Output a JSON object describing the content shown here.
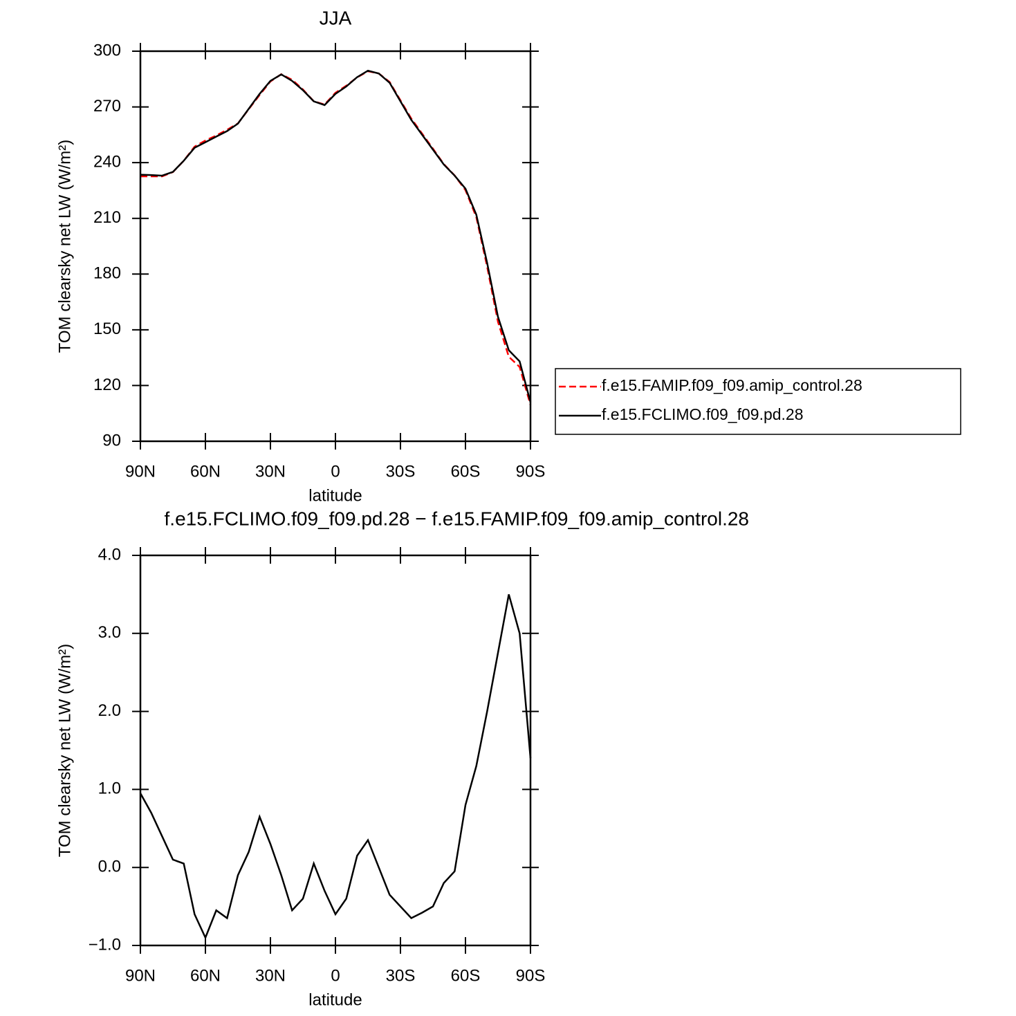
{
  "chart_data": [
    {
      "type": "line",
      "title": "JJA",
      "xlabel": "latitude",
      "ylabel": "TOM clearsky net LW (W/m²)",
      "x": [
        90,
        85,
        80,
        75,
        70,
        65,
        60,
        55,
        50,
        45,
        40,
        35,
        30,
        25,
        20,
        15,
        10,
        5,
        0,
        -5,
        -10,
        -15,
        -20,
        -25,
        -30,
        -35,
        -40,
        -45,
        -50,
        -55,
        -60,
        -65,
        -70,
        -75,
        -80,
        -85,
        -90
      ],
      "series": [
        {
          "name": "f.e15.FAMIP.f09_f09.amip_control.28",
          "color": "#ff0000",
          "linestyle": "dashed",
          "values": [
            232.6,
            232.6,
            232.6,
            234.9,
            241.0,
            248.6,
            251.9,
            254.6,
            257.7,
            261.1,
            268.8,
            276.4,
            283.7,
            287.6,
            284.6,
            279.4,
            273.0,
            271.3,
            277.6,
            281.4,
            285.9,
            289.2,
            288.0,
            283.4,
            273.5,
            263.7,
            255.6,
            247.5,
            239.2,
            233.1,
            225.2,
            210.7,
            184.0,
            154.3,
            135.5,
            130.0,
            109.6
          ]
        },
        {
          "name": "f.e15.FCLIMO.f09_f09.pd.28",
          "color": "#000000",
          "linestyle": "solid",
          "values": [
            233.5,
            233.3,
            233.0,
            235.0,
            241.0,
            248.0,
            251.0,
            254.0,
            257.0,
            261.0,
            269.0,
            277.0,
            284.0,
            287.5,
            284.0,
            279.0,
            273.0,
            271.0,
            277.0,
            281.0,
            286.0,
            289.5,
            288.0,
            283.0,
            273.0,
            263.0,
            255.0,
            247.0,
            239.0,
            233.0,
            226.0,
            212.0,
            186.0,
            157.0,
            139.0,
            133.0,
            111.0
          ]
        }
      ],
      "xlim": [
        90,
        -90
      ],
      "xticks": [
        {
          "value": 90,
          "label": "90N"
        },
        {
          "value": 60,
          "label": "60N"
        },
        {
          "value": 30,
          "label": "30N"
        },
        0,
        {
          "value": -30,
          "label": "30S"
        },
        {
          "value": -60,
          "label": "60S"
        },
        {
          "value": -90,
          "label": "90S"
        }
      ],
      "ylim": [
        90,
        300
      ],
      "yticks": [
        90,
        120,
        150,
        180,
        210,
        240,
        270,
        300
      ],
      "legend": "right"
    },
    {
      "type": "line",
      "title": "f.e15.FCLIMO.f09_f09.pd.28 − f.e15.FAMIP.f09_f09.amip_control.28",
      "xlabel": "latitude",
      "ylabel": "TOM clearsky net LW (W/m²)",
      "x": [
        90,
        85,
        80,
        75,
        70,
        65,
        60,
        55,
        50,
        45,
        40,
        35,
        30,
        25,
        20,
        15,
        10,
        5,
        0,
        -5,
        -10,
        -15,
        -20,
        -25,
        -30,
        -35,
        -40,
        -45,
        -50,
        -55,
        -60,
        -65,
        -70,
        -75,
        -80,
        -85,
        -90
      ],
      "color": "#000000",
      "values": [
        0.95,
        0.7,
        0.4,
        0.1,
        0.05,
        -0.6,
        -0.9,
        -0.55,
        -0.65,
        -0.1,
        0.2,
        0.65,
        0.3,
        -0.1,
        -0.55,
        -0.4,
        0.05,
        -0.3,
        -0.6,
        -0.4,
        0.15,
        0.35,
        0.0,
        -0.35,
        -0.5,
        -0.65,
        -0.58,
        -0.5,
        -0.2,
        -0.05,
        0.8,
        1.3,
        2.0,
        2.75,
        3.5,
        3.0,
        1.4
      ],
      "xlim": [
        90,
        -90
      ],
      "xticks": [
        {
          "value": 90,
          "label": "90N"
        },
        {
          "value": 60,
          "label": "60N"
        },
        {
          "value": 30,
          "label": "30N"
        },
        0,
        {
          "value": -30,
          "label": "30S"
        },
        {
          "value": -60,
          "label": "60S"
        },
        {
          "value": -90,
          "label": "90S"
        }
      ],
      "ylim": [
        -1,
        4
      ],
      "yticks": [
        {
          "value": -1,
          "label": "−1.0"
        },
        {
          "value": 0,
          "label": "0.0"
        },
        {
          "value": 1,
          "label": "1.0"
        },
        {
          "value": 2,
          "label": "2.0"
        },
        {
          "value": 3,
          "label": "3.0"
        },
        {
          "value": 4,
          "label": "4.0"
        }
      ]
    }
  ]
}
